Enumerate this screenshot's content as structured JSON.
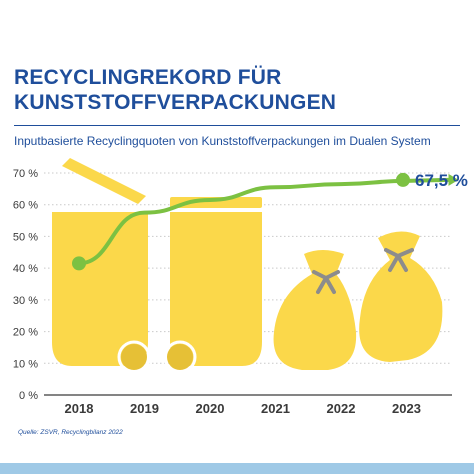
{
  "header": {
    "title_line_1": "RECYCLINGREKORD FÜR",
    "title_line_2": "KUNSTSTOFFVERPACKUNGEN",
    "subtitle": "Inputbasierte Recyclingquoten von Kunststoffverpackungen im Dualen System"
  },
  "footer": {
    "source": "Quelle: ZSVR, Recyclingbilanz 2022"
  },
  "colors": {
    "title": "#1f4e9b",
    "subtitle": "#1f4e9b",
    "rule": "#1f4e9b",
    "yellow": "#fbd84a",
    "yellow_dark": "#e6c036",
    "knot": "#8c8c8c",
    "line": "#7cc142",
    "axis_text": "#3a3a3a",
    "grid": "#c9c9c9",
    "highlight": "#1f4e9b",
    "bottom_bar": "#9fc9e6",
    "source": "#1f4e9b"
  },
  "icons": [
    "yellow-bin-icon",
    "yellow-bin-icon",
    "yellow-sack-icon",
    "yellow-sack-icon"
  ],
  "chart_data": {
    "type": "line",
    "title": "",
    "xlabel": "",
    "ylabel": "",
    "categories": [
      "2018",
      "2019",
      "2020",
      "2021",
      "2022",
      "2023"
    ],
    "series": [
      {
        "values": [
          41.5,
          57.5,
          61.5,
          65.5,
          66.5,
          67.5
        ]
      }
    ],
    "markers": [
      {
        "category": "2018",
        "value": 41.5
      },
      {
        "category": "2023",
        "value": 67.5,
        "label": "67,5 %"
      }
    ],
    "ylim": [
      0,
      70
    ],
    "yticks": [
      0,
      10,
      20,
      30,
      40,
      50,
      60,
      70
    ],
    "ytick_labels": [
      "0 %",
      "10 %",
      "20 %",
      "30 %",
      "40 %",
      "50 %",
      "60 %",
      "70 %"
    ],
    "grid": true,
    "legend": "none"
  }
}
